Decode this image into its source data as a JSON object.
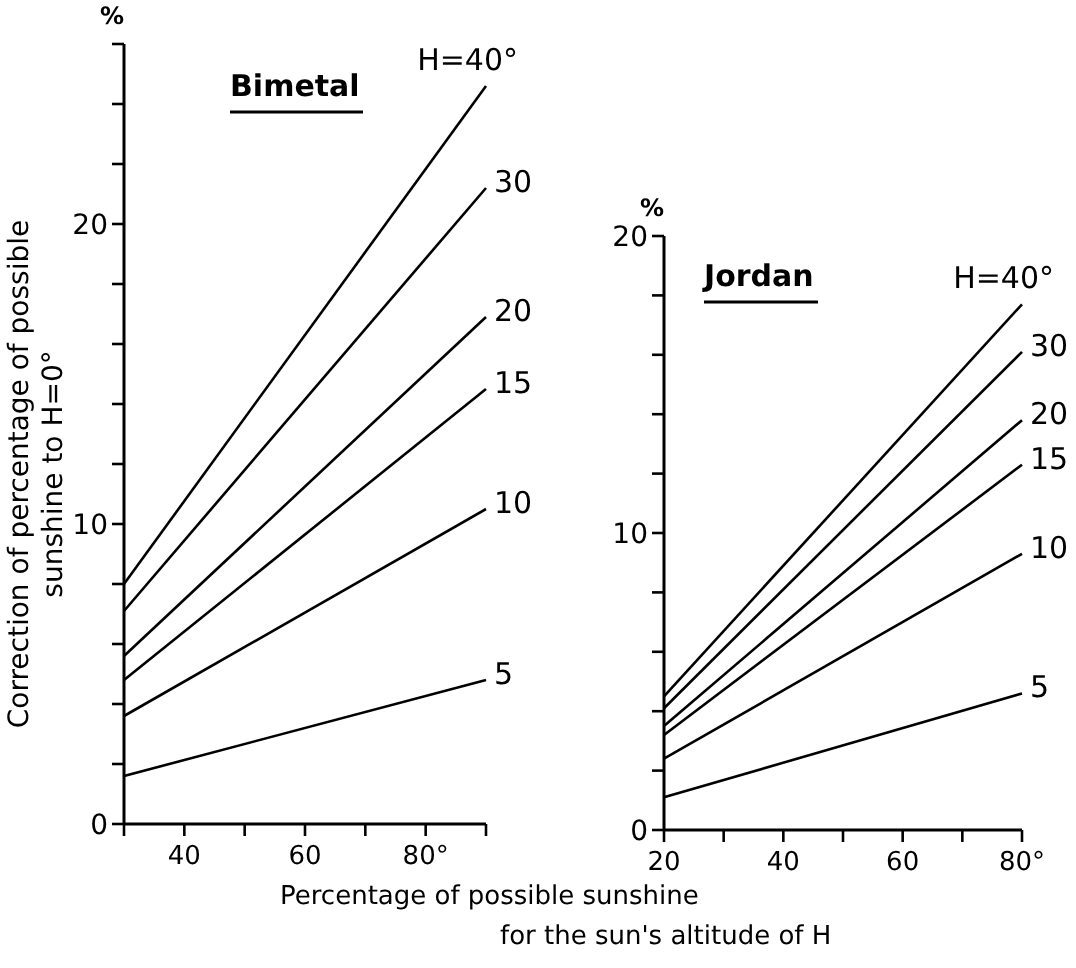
{
  "chart_data": [
    {
      "type": "line",
      "title": "Bimetal",
      "ylabel": "Correction of percentage of possible\nsunshine to H=0°",
      "xlabel": "Percentage of possible sunshine\nfor the sun's altitude of H",
      "annotations": [
        "%"
      ],
      "xlim": [
        30,
        90
      ],
      "xticks": [
        {
          "value": 30,
          "label": null
        },
        40,
        {
          "value": 50,
          "label": null
        },
        60,
        {
          "value": 70,
          "label": null
        },
        {
          "value": 80,
          "label": "80°"
        },
        {
          "value": 90,
          "label": null
        }
      ],
      "ylim": [
        0,
        26
      ],
      "yticks": [
        0,
        {
          "value": 2,
          "label": null
        },
        {
          "value": 4,
          "label": null
        },
        {
          "value": 6,
          "label": null
        },
        {
          "value": 8,
          "label": null
        },
        10,
        {
          "value": 12,
          "label": null
        },
        {
          "value": 14,
          "label": null
        },
        {
          "value": 16,
          "label": null
        },
        {
          "value": 18,
          "label": null
        },
        20,
        {
          "value": 22,
          "label": null
        },
        {
          "value": 24,
          "label": null
        },
        {
          "value": 26,
          "label": null
        }
      ],
      "grid": false,
      "marker": "none",
      "line_style": "solid",
      "series": [
        {
          "name": "H=40°",
          "color": "#000000",
          "x": [
            30,
            90
          ],
          "values": [
            8.0,
            24.6
          ]
        },
        {
          "name": "30",
          "color": "#000000",
          "x": [
            30,
            90
          ],
          "values": [
            7.1,
            21.2
          ]
        },
        {
          "name": "20",
          "color": "#000000",
          "x": [
            30,
            90
          ],
          "values": [
            5.6,
            16.9
          ]
        },
        {
          "name": "15",
          "color": "#000000",
          "x": [
            30,
            90
          ],
          "values": [
            4.8,
            14.5
          ]
        },
        {
          "name": "10",
          "color": "#000000",
          "x": [
            30,
            90
          ],
          "values": [
            3.6,
            10.5
          ]
        },
        {
          "name": "5",
          "color": "#000000",
          "x": [
            30,
            90
          ],
          "values": [
            1.6,
            4.8
          ]
        }
      ]
    },
    {
      "type": "line",
      "title": "Jordan",
      "annotations": [
        "%"
      ],
      "xlim": [
        20,
        80
      ],
      "xticks": [
        20,
        {
          "value": 30,
          "label": null
        },
        40,
        {
          "value": 50,
          "label": null
        },
        60,
        {
          "value": 70,
          "label": null
        },
        {
          "value": 80,
          "label": "80°"
        }
      ],
      "ylim": [
        0,
        20
      ],
      "yticks": [
        0,
        {
          "value": 2,
          "label": null
        },
        {
          "value": 4,
          "label": null
        },
        {
          "value": 6,
          "label": null
        },
        {
          "value": 8,
          "label": null
        },
        10,
        {
          "value": 12,
          "label": null
        },
        {
          "value": 14,
          "label": null
        },
        {
          "value": 16,
          "label": null
        },
        {
          "value": 18,
          "label": null
        },
        20
      ],
      "grid": false,
      "marker": "none",
      "line_style": "solid",
      "series": [
        {
          "name": "H=40°",
          "color": "#000000",
          "x": [
            20,
            80
          ],
          "values": [
            4.5,
            17.7
          ]
        },
        {
          "name": "30",
          "color": "#000000",
          "x": [
            20,
            80
          ],
          "values": [
            4.1,
            16.1
          ]
        },
        {
          "name": "20",
          "color": "#000000",
          "x": [
            20,
            80
          ],
          "values": [
            3.5,
            13.8
          ]
        },
        {
          "name": "15",
          "color": "#000000",
          "x": [
            20,
            80
          ],
          "values": [
            3.2,
            12.3
          ]
        },
        {
          "name": "10",
          "color": "#000000",
          "x": [
            20,
            80
          ],
          "values": [
            2.4,
            9.3
          ]
        },
        {
          "name": "5",
          "color": "#000000",
          "x": [
            20,
            80
          ],
          "values": [
            1.1,
            4.6
          ]
        }
      ]
    }
  ]
}
